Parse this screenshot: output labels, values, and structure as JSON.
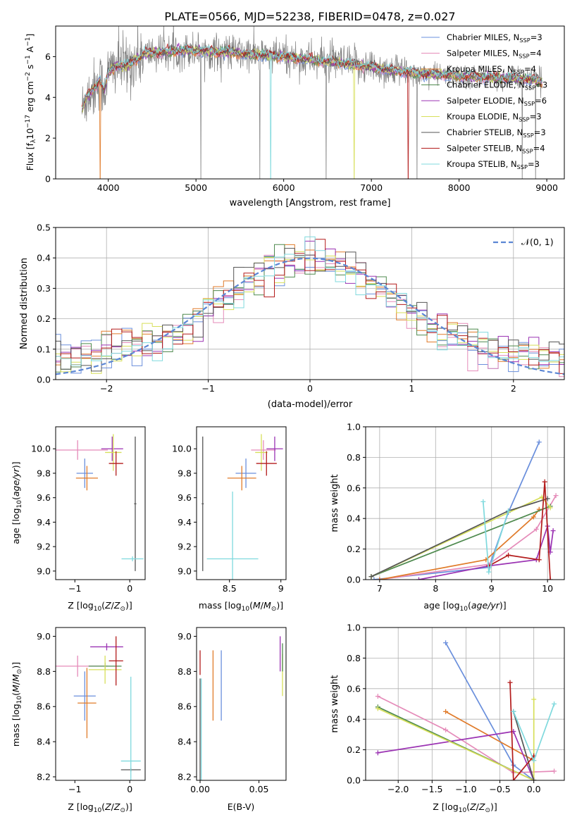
{
  "figure": {
    "title": "PLATE=0566, MJD=52238, FIBERID=0478, z=0.027"
  },
  "model_colors": {
    "Chabrier MILES": "#6a8fdc",
    "Salpeter MILES": "#e58bb9",
    "Kroupa MILES": "#e07b2a",
    "Chabrier ELODIE": "#4f8a4f",
    "Salpeter ELODIE": "#9b33b3",
    "Kroupa ELODIE": "#d7df5a",
    "Chabrier STELIB": "#555555",
    "Salpeter STELIB": "#b31b1b",
    "Kroupa STELIB": "#7fd9dd",
    "data": "#808080",
    "gaussian": "#5b86d4"
  },
  "chart_data": [
    {
      "id": "spectrum",
      "type": "line",
      "xlabel": "wavelength [Angstrom, rest frame]",
      "ylabel": "Flux [f_λ10^-17 erg cm^-2 s^-1 A^-1]",
      "xlim": [
        3400,
        9200
      ],
      "ylim": [
        0,
        7.5
      ],
      "xticks": [
        4000,
        5000,
        6000,
        7000,
        8000,
        9000
      ],
      "yticks": [
        0,
        2,
        4,
        6
      ],
      "grid": false,
      "legend_position": "top-right",
      "series": [
        {
          "name": "Chabrier MILES, N_SSP=3"
        },
        {
          "name": "Salpeter MILES, N_SSP=4"
        },
        {
          "name": "Kroupa MILES, N_SSP=4"
        },
        {
          "name": "Chabrier ELODIE, N_SSP=3"
        },
        {
          "name": "Salpeter ELODIE, N_SSP=6"
        },
        {
          "name": "Kroupa ELODIE, N_SSP=3"
        },
        {
          "name": "Chabrier STELIB, N_SSP=3"
        },
        {
          "name": "Salpeter STELIB, N_SSP=4"
        },
        {
          "name": "Kroupa STELIB, N_SSP=3"
        }
      ],
      "model_continuum": {
        "x": [
          3700,
          3750,
          3800,
          3850,
          3900,
          3950,
          4000,
          4100,
          4200,
          4300,
          4400,
          4500,
          4600,
          4800,
          5000,
          5200,
          5400,
          5600,
          5800,
          6000,
          6200,
          6400,
          6600,
          6800,
          7000,
          7200,
          7400,
          7600,
          7800,
          8000,
          8200,
          8400,
          8600,
          8800,
          8950
        ],
        "y": [
          3.4,
          4.0,
          4.3,
          4.5,
          4.9,
          4.3,
          5.2,
          5.6,
          5.5,
          5.8,
          6.1,
          6.2,
          6.2,
          6.3,
          6.3,
          6.25,
          6.2,
          6.1,
          6.05,
          6.0,
          5.9,
          5.8,
          5.7,
          5.6,
          5.5,
          5.35,
          5.25,
          5.15,
          5.1,
          5.05,
          5.0,
          4.95,
          4.95,
          4.9,
          4.8
        ]
      }
    },
    {
      "id": "residuals",
      "type": "histogram",
      "xlabel": "(data-model)/error",
      "ylabel": "Normed distribution",
      "xlim": [
        -2.5,
        2.5
      ],
      "ylim": [
        0,
        0.5
      ],
      "xticks": [
        -2,
        -1,
        0,
        1,
        2
      ],
      "yticks": [
        0.0,
        0.1,
        0.2,
        0.3,
        0.4,
        0.5
      ],
      "grid": true,
      "legend_position": "top-right",
      "gaussian_label": "𝒩(0, 1)",
      "bin_width": 0.1
    },
    {
      "id": "age-vs-Z",
      "type": "scatter",
      "xlabel": "Z [log10(Z/Z⊙)]",
      "ylabel": "age  [log10(age/yr)]",
      "xlim": [
        -1.35,
        0.28
      ],
      "ylim": [
        8.93,
        10.18
      ],
      "xticks": [
        -1,
        0
      ],
      "yticks": [
        9.0,
        9.2,
        9.4,
        9.6,
        9.8,
        10.0
      ],
      "points": [
        {
          "model": "Chabrier MILES",
          "x": -0.82,
          "y": 9.8,
          "xerr": 0.15,
          "yerr": 0.12
        },
        {
          "model": "Kroupa MILES",
          "x": -0.78,
          "y": 9.76,
          "xerr": 0.2,
          "yerr": 0.1
        },
        {
          "model": "Salpeter MILES",
          "x": -0.95,
          "y": 9.99,
          "xerr": 0.55,
          "yerr": 0.08
        },
        {
          "model": "Salpeter ELODIE",
          "x": -0.32,
          "y": 10.0,
          "xerr": 0.2,
          "yerr": 0.1
        },
        {
          "model": "Kroupa ELODIE",
          "x": -0.3,
          "y": 9.97,
          "xerr": 0.15,
          "yerr": 0.15
        },
        {
          "model": "Salpeter STELIB",
          "x": -0.25,
          "y": 9.88,
          "xerr": 0.13,
          "yerr": 0.1
        },
        {
          "model": "Chabrier STELIB",
          "x": 0.1,
          "y": 9.55,
          "xerr": 0.02,
          "yerr": 0.55
        },
        {
          "model": "Kroupa STELIB",
          "x": 0.05,
          "y": 9.1,
          "xerr": 0.2,
          "yerr": 0.02
        }
      ]
    },
    {
      "id": "age-vs-mass",
      "type": "scatter",
      "xlabel": "mass [log10(M/M⊙)]",
      "ylabel": "",
      "xlim": [
        8.18,
        9.05
      ],
      "ylim": [
        8.93,
        10.18
      ],
      "xticks": [
        8.5,
        9.0
      ],
      "yticks": [
        9.0,
        9.2,
        9.4,
        9.6,
        9.8,
        10.0
      ],
      "points": [
        {
          "model": "Chabrier MILES",
          "x": 8.66,
          "y": 9.8,
          "xerr": 0.1,
          "yerr": 0.12
        },
        {
          "model": "Kroupa MILES",
          "x": 8.62,
          "y": 9.76,
          "xerr": 0.14,
          "yerr": 0.1
        },
        {
          "model": "Salpeter MILES",
          "x": 8.83,
          "y": 9.99,
          "xerr": 0.12,
          "yerr": 0.08
        },
        {
          "model": "Salpeter ELODIE",
          "x": 8.94,
          "y": 10.0,
          "xerr": 0.08,
          "yerr": 0.1
        },
        {
          "model": "Kroupa ELODIE",
          "x": 8.81,
          "y": 9.97,
          "xerr": 0.06,
          "yerr": 0.15
        },
        {
          "model": "Salpeter STELIB",
          "x": 8.86,
          "y": 9.88,
          "xerr": 0.1,
          "yerr": 0.1
        },
        {
          "model": "Chabrier STELIB",
          "x": 8.24,
          "y": 9.55,
          "xerr": 0.01,
          "yerr": 0.55
        },
        {
          "model": "Kroupa STELIB",
          "x": 8.53,
          "y": 9.1,
          "xerr": 0.25,
          "yerr": 0.55
        }
      ]
    },
    {
      "id": "mass-weight-vs-age",
      "type": "line",
      "xlabel": "age  [log10(age/yr)]",
      "ylabel": "mass weight",
      "xlim": [
        6.75,
        10.3
      ],
      "ylim": [
        0,
        1.0
      ],
      "xticks": [
        7,
        8,
        9,
        10
      ],
      "yticks": [
        0.0,
        0.2,
        0.4,
        0.6,
        0.8,
        1.0
      ],
      "grid": true,
      "series": [
        {
          "model": "Chabrier MILES",
          "x": [
            6.9,
            8.95,
            9.3,
            9.85
          ],
          "y": [
            0.0,
            0.08,
            0.44,
            0.9
          ]
        },
        {
          "model": "Salpeter MILES",
          "x": [
            7.0,
            8.95,
            9.8,
            10.15
          ],
          "y": [
            0.0,
            0.1,
            0.33,
            0.55
          ]
        },
        {
          "model": "Kroupa MILES",
          "x": [
            7.0,
            8.9,
            9.75,
            9.85
          ],
          "y": [
            0.0,
            0.13,
            0.41,
            0.46
          ]
        },
        {
          "model": "Chabrier ELODIE",
          "x": [
            6.85,
            10.05
          ],
          "y": [
            0.02,
            0.48
          ]
        },
        {
          "model": "Salpeter ELODIE",
          "x": [
            7.7,
            8.95,
            9.8,
            10.0,
            10.05,
            10.1
          ],
          "y": [
            0.0,
            0.09,
            0.13,
            0.35,
            0.18,
            0.32
          ]
        },
        {
          "model": "Kroupa ELODIE",
          "x": [
            6.85,
            9.9,
            10.05
          ],
          "y": [
            0.02,
            0.54,
            0.47
          ]
        },
        {
          "model": "Chabrier STELIB",
          "x": [
            6.85,
            9.3,
            10.0
          ],
          "y": [
            0.02,
            0.45,
            0.53
          ]
        },
        {
          "model": "Salpeter STELIB",
          "x": [
            8.95,
            9.3,
            9.85,
            9.95,
            10.05
          ],
          "y": [
            0.09,
            0.16,
            0.13,
            0.64,
            0.0
          ]
        },
        {
          "model": "Kroupa STELIB",
          "x": [
            8.85,
            8.95,
            9.3
          ],
          "y": [
            0.51,
            0.05,
            0.45
          ]
        }
      ]
    },
    {
      "id": "mass-vs-Z",
      "type": "scatter",
      "xlabel": "Z [log10(Z/Z⊙)]",
      "ylabel": "mass [log10(M/M⊙)]",
      "xlim": [
        -1.35,
        0.28
      ],
      "ylim": [
        8.18,
        9.05
      ],
      "xticks": [
        -1,
        0
      ],
      "yticks": [
        8.2,
        8.4,
        8.6,
        8.8,
        9.0
      ],
      "points": [
        {
          "model": "Chabrier MILES",
          "x": -0.82,
          "y": 8.66,
          "xerr": 0.2,
          "yerr": 0.14
        },
        {
          "model": "Kroupa MILES",
          "x": -0.78,
          "y": 8.62,
          "xerr": 0.17,
          "yerr": 0.2
        },
        {
          "model": "Salpeter MILES",
          "x": -0.95,
          "y": 8.83,
          "xerr": 0.55,
          "yerr": 0.06
        },
        {
          "model": "Chabrier ELODIE",
          "x": -0.45,
          "y": 8.83,
          "xerr": 0.3,
          "yerr": 0.02
        },
        {
          "model": "Salpeter ELODIE",
          "x": -0.42,
          "y": 8.94,
          "xerr": 0.3,
          "yerr": 0.02
        },
        {
          "model": "Kroupa ELODIE",
          "x": -0.45,
          "y": 8.81,
          "xerr": 0.3,
          "yerr": 0.08
        },
        {
          "model": "Salpeter STELIB",
          "x": -0.25,
          "y": 8.86,
          "xerr": 0.13,
          "yerr": 0.14
        },
        {
          "model": "Chabrier STELIB",
          "x": 0.02,
          "y": 8.24,
          "xerr": 0.18,
          "yerr": 0.01
        },
        {
          "model": "Kroupa STELIB",
          "x": 0.02,
          "y": 8.29,
          "xerr": 0.18,
          "yerr": 0.48
        }
      ]
    },
    {
      "id": "mass-vs-EBV",
      "type": "scatter",
      "xlabel": "E(B-V)",
      "ylabel": "",
      "xlim": [
        -0.003,
        0.073
      ],
      "ylim": [
        8.18,
        9.05
      ],
      "xticks": [
        0.0,
        0.05
      ],
      "yticks": [
        8.2,
        8.4,
        8.6,
        8.8,
        9.0
      ],
      "points": [
        {
          "model": "Chabrier MILES",
          "x": 0.018,
          "y": 8.72,
          "yerr": 0.2
        },
        {
          "model": "Kroupa MILES",
          "x": 0.011,
          "y": 8.72,
          "yerr": 0.2
        },
        {
          "model": "Salpeter STELIB",
          "x": 0.0,
          "y": 8.85,
          "yerr": 0.07
        },
        {
          "model": "Chabrier STELIB",
          "x": 0.0,
          "y": 8.47,
          "yerr": 0.29
        },
        {
          "model": "Kroupa STELIB",
          "x": 0.001,
          "y": 8.47,
          "yerr": 0.29
        },
        {
          "model": "Salpeter ELODIE",
          "x": 0.068,
          "y": 8.9,
          "yerr": 0.1
        },
        {
          "model": "Kroupa ELODIE",
          "x": 0.07,
          "y": 8.78,
          "yerr": 0.12
        },
        {
          "model": "Chabrier ELODIE",
          "x": 0.07,
          "y": 8.88,
          "yerr": 0.08
        }
      ]
    },
    {
      "id": "mass-weight-vs-Z",
      "type": "line",
      "xlabel": "Z [log10(Z/Z⊙)]",
      "ylabel": "mass weight",
      "xlim": [
        -2.48,
        0.45
      ],
      "ylim": [
        0,
        1.0
      ],
      "xticks": [
        -2.0,
        -1.5,
        -1.0,
        -0.5,
        0.0
      ],
      "yticks": [
        0.0,
        0.2,
        0.4,
        0.6,
        0.8,
        1.0
      ],
      "grid": true,
      "series": [
        {
          "model": "Chabrier MILES",
          "x": [
            -1.3,
            -0.3,
            0.0
          ],
          "y": [
            0.9,
            0.1,
            0.0
          ]
        },
        {
          "model": "Salpeter MILES",
          "x": [
            -2.3,
            -1.3,
            -0.3,
            0.3
          ],
          "y": [
            0.55,
            0.33,
            0.05,
            0.06
          ]
        },
        {
          "model": "Kroupa MILES",
          "x": [
            -1.3,
            0.0,
            0.0
          ],
          "y": [
            0.45,
            0.13,
            0.0
          ]
        },
        {
          "model": "Chabrier ELODIE",
          "x": [
            -2.3,
            0.0
          ],
          "y": [
            0.48,
            0.0
          ]
        },
        {
          "model": "Salpeter ELODIE",
          "x": [
            -2.3,
            -0.3,
            0.0
          ],
          "y": [
            0.18,
            0.32,
            0.0
          ]
        },
        {
          "model": "Kroupa ELODIE",
          "x": [
            -2.3,
            0.0,
            0.0
          ],
          "y": [
            0.47,
            0.0,
            0.53
          ]
        },
        {
          "model": "Chabrier STELIB",
          "x": [
            -0.3,
            0.0
          ],
          "y": [
            0.45,
            0.0
          ]
        },
        {
          "model": "Salpeter STELIB",
          "x": [
            -0.35,
            -0.3,
            0.0
          ],
          "y": [
            0.64,
            0.0,
            0.16
          ]
        },
        {
          "model": "Kroupa STELIB",
          "x": [
            -0.3,
            0.0,
            0.3
          ],
          "y": [
            0.45,
            0.13,
            0.5
          ]
        }
      ]
    }
  ]
}
